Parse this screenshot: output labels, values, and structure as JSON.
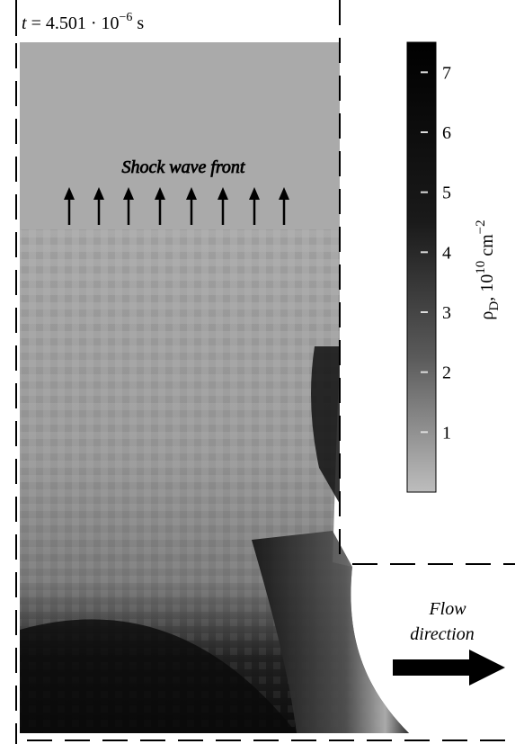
{
  "time_label": {
    "variable": "t",
    "equals": " = 4.501 · 10",
    "exponent": "−6",
    "unit": " s"
  },
  "annotations": {
    "shock_front": "Shock wave front",
    "flow_line1": "Flow",
    "flow_line2": "direction"
  },
  "colorbar": {
    "symbol": "ρ",
    "subscript": "D",
    "units_prefix": ", 10",
    "units_exponent": "10",
    "units_mid": " cm",
    "units_exponent2": "−2",
    "lim": [
      0,
      7.5
    ],
    "ticks": [
      1,
      2,
      3,
      4,
      5,
      6,
      7
    ]
  }
}
